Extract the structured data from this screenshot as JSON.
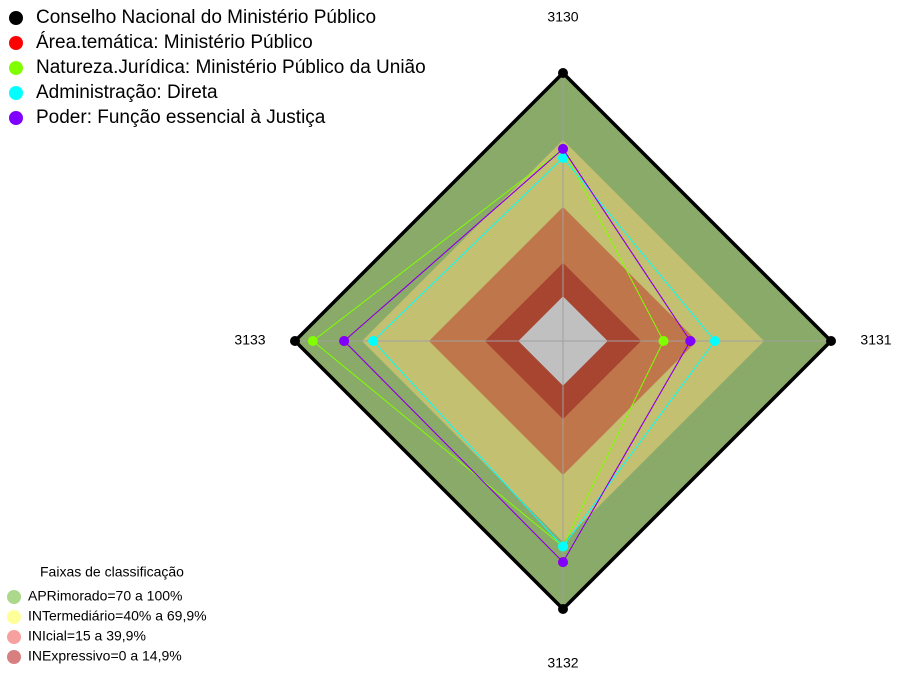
{
  "chart_data": {
    "type": "radar",
    "axes": [
      "3130",
      "3131",
      "3132",
      "3133"
    ],
    "rlim": [
      -20,
      100
    ],
    "bands_title": "Faixas de classificação",
    "bands": [
      {
        "name": "APRimorado=70 a 100%",
        "range": [
          70,
          100
        ],
        "color": "#8aaa69",
        "legend_color": "#acd88c"
      },
      {
        "name": "INTermediário=40% a 69,9%",
        "range": [
          40,
          70
        ],
        "color": "#c3c071",
        "legend_color": "#ffff99"
      },
      {
        "name": "INIcial=15 a 39,9%",
        "range": [
          15,
          40
        ],
        "color": "#c0764b",
        "legend_color": "#f7a0a0"
      },
      {
        "name": "INExpressivo=0 a 14,9%",
        "range": [
          0,
          15
        ],
        "color": "#a84530",
        "legend_color": "#d88080"
      }
    ],
    "series": [
      {
        "name": "Conselho Nacional do Ministério Público",
        "color": "#000000",
        "values": [
          100,
          100,
          100,
          100
        ]
      },
      {
        "name": "Área.temática: Ministério Público",
        "color": "#ff0000",
        "values": [
          66,
          37,
          79,
          78
        ]
      },
      {
        "name": "Natureza.Jurídica: Ministério Público da União",
        "color": "#80ff00",
        "values": [
          66,
          25,
          72,
          92
        ]
      },
      {
        "name": "Administração: Direta",
        "color": "#00ffff",
        "values": [
          62,
          48,
          72,
          65
        ]
      },
      {
        "name": "Poder: Função essencial à Justiça",
        "color": "#8000ff",
        "values": [
          66,
          37,
          79,
          78
        ]
      }
    ]
  }
}
